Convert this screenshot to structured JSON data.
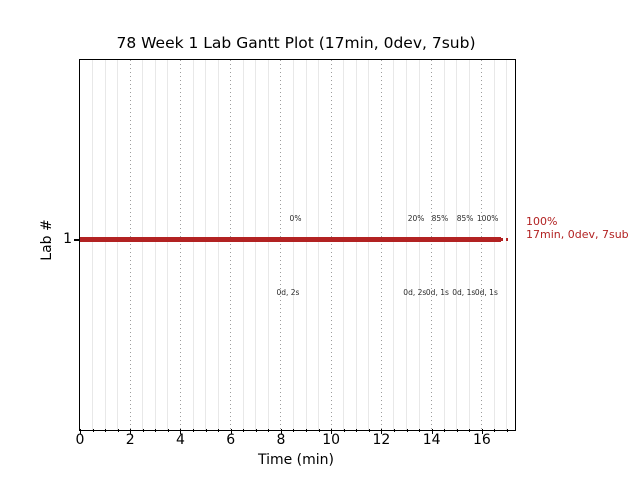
{
  "colors": {
    "line": "#b22222",
    "major_grid": "#9d9d9d",
    "minor_grid": "#e8e8e8",
    "annotation_text": "#2b2b2b",
    "axis": "#000000"
  },
  "chart_data": {
    "type": "line",
    "subtype": "gantt",
    "title": "78 Week 1 Lab Gantt Plot (17min, 0dev, 7sub)",
    "xlabel": "Time (min)",
    "ylabel": "Lab #",
    "xlim": [
      0,
      17.2
    ],
    "x_major_ticks": [
      0,
      2,
      4,
      6,
      8,
      10,
      12,
      14,
      16
    ],
    "x_minor_tick_step": 0.5,
    "y_categories": [
      "1"
    ],
    "grid": {
      "major_x": "dotted",
      "minor_x": "light-solid",
      "horizontal": "none"
    },
    "legend": "none",
    "series": [
      {
        "name": "Lab 1",
        "y": 1,
        "start_min": 0,
        "end_min": 16.8,
        "dotted_extension_to_min": 17.2,
        "color": "#b22222",
        "final_percent": "100%",
        "summary": "17min, 0dev, 7sub"
      }
    ],
    "events": {
      "above_line": [
        {
          "t_min": 8.6,
          "label": "0%"
        },
        {
          "t_min": 13.4,
          "label": "20%"
        },
        {
          "t_min": 14.35,
          "label": "85%"
        },
        {
          "t_min": 15.35,
          "label": "85%"
        },
        {
          "t_min": 16.25,
          "label": "100%"
        }
      ],
      "below_line": [
        {
          "t_min": 8.3,
          "label": "0d, 2s"
        },
        {
          "t_min": 13.35,
          "label": "0d, 2s"
        },
        {
          "t_min": 14.25,
          "label": "0d, 1s"
        },
        {
          "t_min": 15.3,
          "label": "0d, 1s"
        },
        {
          "t_min": 16.2,
          "label": "0d, 1s"
        }
      ]
    }
  }
}
